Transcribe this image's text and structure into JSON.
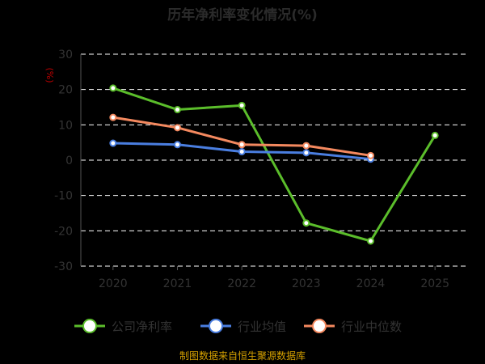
{
  "chart_data": {
    "type": "line",
    "title": "历年净利率变化情况(%)",
    "ylabel": "(%)",
    "xlabel": "",
    "categories": [
      "2020",
      "2021",
      "2022",
      "2023",
      "2024",
      "2025"
    ],
    "ylim": [
      -30,
      30
    ],
    "yticks": [
      30,
      20,
      10,
      0,
      -10,
      -20,
      -30
    ],
    "grid": true,
    "legend_position": "bottom",
    "series": [
      {
        "name": "公司净利率",
        "color": "#5bbd2b",
        "values": [
          20.4,
          14.3,
          15.5,
          -17.8,
          -22.9,
          7.0
        ]
      },
      {
        "name": "行业均值",
        "color": "#4a7ee0",
        "values": [
          4.8,
          4.4,
          2.4,
          2.1,
          0.3,
          null
        ]
      },
      {
        "name": "行业中位数",
        "color": "#f4895f",
        "values": [
          12.1,
          9.2,
          4.4,
          4.1,
          1.3,
          null
        ]
      }
    ]
  },
  "footer": {
    "source": "制图数据来自恒生聚源数据库"
  }
}
